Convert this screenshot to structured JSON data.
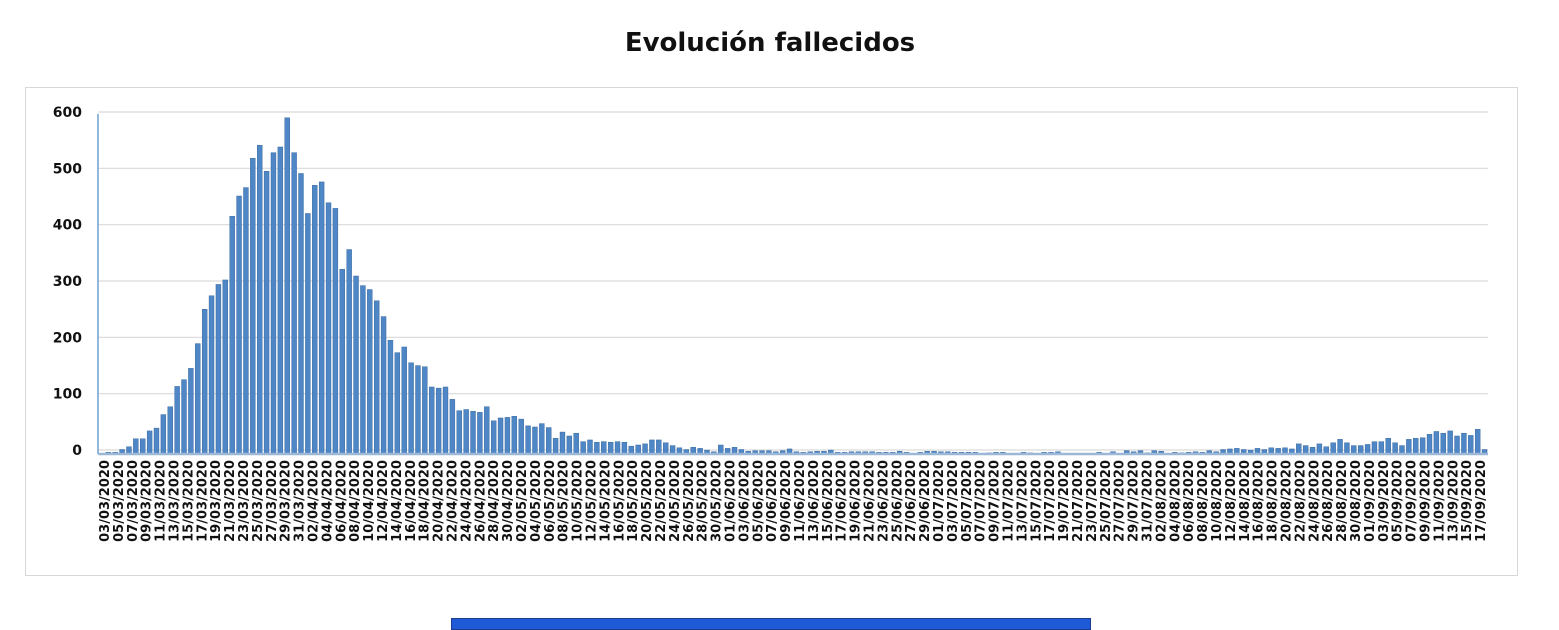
{
  "title": "Evolución fallecidos",
  "chart_data": {
    "type": "bar",
    "title": "Evolución fallecidos",
    "xlabel": "",
    "ylabel": "",
    "ylim": [
      0,
      600
    ],
    "yticks": [
      0,
      100,
      200,
      300,
      400,
      500,
      600
    ],
    "grid": true,
    "bar_color": "#4f86c6",
    "tick_labels": [
      "03/03/2020",
      "05/03/2020",
      "07/03/2020",
      "09/03/2020",
      "11/03/2020",
      "13/03/2020",
      "15/03/2020",
      "17/03/2020",
      "19/03/2020",
      "21/03/2020",
      "23/03/2020",
      "25/03/2020",
      "27/03/2020",
      "29/03/2020",
      "31/03/2020",
      "02/04/2020",
      "04/04/2020",
      "06/04/2020",
      "08/04/2020",
      "10/04/2020",
      "12/04/2020",
      "14/04/2020",
      "16/04/2020",
      "18/04/2020",
      "20/04/2020",
      "22/04/2020",
      "24/04/2020",
      "26/04/2020",
      "28/04/2020",
      "30/04/2020",
      "02/05/2020",
      "04/05/2020",
      "06/05/2020",
      "08/05/2020",
      "10/05/2020",
      "12/05/2020",
      "14/05/2020",
      "16/05/2020",
      "18/05/2020",
      "20/05/2020",
      "22/05/2020",
      "24/05/2020",
      "26/05/2020",
      "28/05/2020",
      "30/05/2020",
      "01/06/2020",
      "03/06/2020",
      "05/06/2020",
      "07/06/2020",
      "09/06/2020",
      "11/06/2020",
      "13/06/2020",
      "15/06/2020",
      "17/06/2020",
      "19/06/2020",
      "21/06/2020",
      "23/06/2020",
      "25/06/2020",
      "27/06/2020",
      "29/06/2020",
      "01/07/2020",
      "03/07/2020",
      "05/07/2020",
      "07/07/2020",
      "09/07/2020",
      "11/07/2020",
      "13/07/2020",
      "15/07/2020",
      "17/07/2020",
      "19/07/2020",
      "21/07/2020",
      "23/07/2020",
      "25/07/2020",
      "27/07/2020",
      "29/07/2020",
      "31/07/2020",
      "02/08/2020",
      "04/08/2020",
      "06/08/2020",
      "08/08/2020",
      "10/08/2020",
      "12/08/2020",
      "14/08/2020",
      "16/08/2020",
      "18/08/2020",
      "20/08/2020",
      "22/08/2020",
      "24/08/2020",
      "26/08/2020",
      "28/08/2020",
      "30/08/2020",
      "01/09/2020",
      "03/09/2020",
      "05/09/2020",
      "07/09/2020",
      "09/09/2020",
      "11/09/2020",
      "13/09/2020",
      "15/09/2020",
      "17/09/2020"
    ],
    "values": [
      0,
      3,
      3,
      8,
      13,
      27,
      27,
      41,
      46,
      70,
      84,
      120,
      132,
      152,
      196,
      257,
      281,
      301,
      309,
      422,
      458,
      473,
      525,
      548,
      502,
      535,
      545,
      597,
      535,
      498,
      427,
      477,
      483,
      446,
      436,
      328,
      363,
      316,
      299,
      292,
      272,
      244,
      202,
      180,
      190,
      162,
      157,
      155,
      119,
      117,
      119,
      97,
      77,
      79,
      76,
      74,
      84,
      59,
      64,
      65,
      67,
      62,
      50,
      48,
      54,
      47,
      28,
      39,
      32,
      37,
      22,
      25,
      21,
      22,
      21,
      22,
      21,
      14,
      16,
      18,
      25,
      25,
      20,
      15,
      11,
      8,
      12,
      10,
      7,
      4,
      16,
      10,
      12,
      8,
      5,
      6,
      6,
      6,
      4,
      6,
      9,
      4,
      3,
      4,
      5,
      5,
      7,
      3,
      3,
      4,
      4,
      4,
      4,
      3,
      3,
      3,
      5,
      3,
      0,
      3,
      5,
      5,
      4,
      4,
      3,
      3,
      3,
      3,
      0,
      2,
      3,
      3,
      0,
      0,
      3,
      2,
      0,
      3,
      3,
      4,
      0,
      0,
      0,
      0,
      0,
      3,
      0,
      4,
      0,
      6,
      4,
      6,
      2,
      6,
      5,
      0,
      3,
      2,
      3,
      4,
      3,
      6,
      4,
      8,
      9,
      10,
      8,
      7,
      10,
      8,
      11,
      10,
      11,
      9,
      18,
      15,
      12,
      18,
      13,
      20,
      26,
      20,
      15,
      15,
      17,
      22,
      22,
      28,
      20,
      15,
      26,
      28,
      29,
      35,
      40,
      37,
      41,
      32,
      37,
      33,
      44,
      8
    ]
  }
}
